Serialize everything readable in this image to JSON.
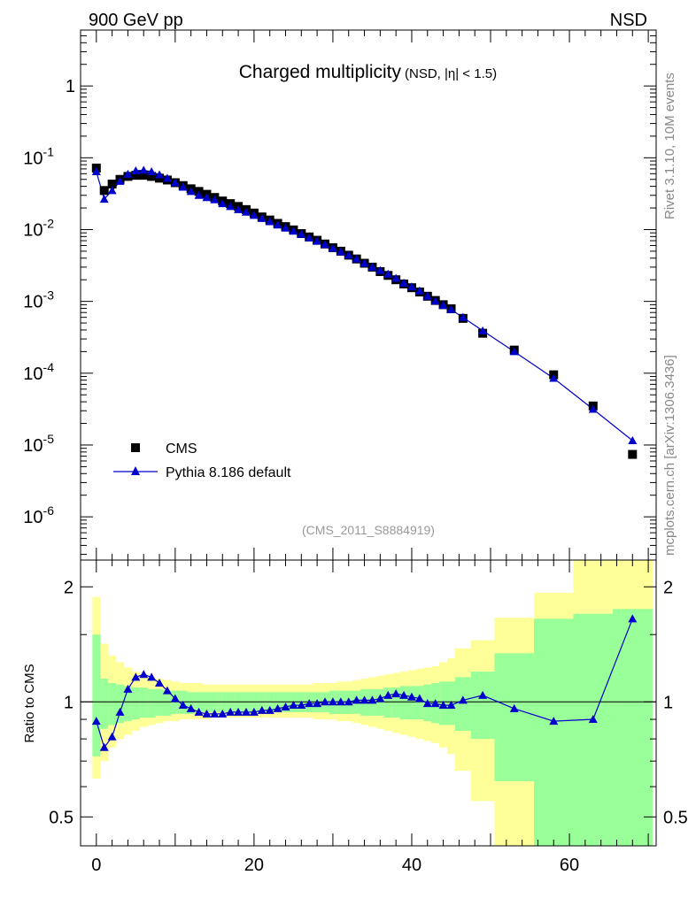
{
  "header": {
    "left": "900 GeV pp",
    "right": "NSD"
  },
  "title": {
    "main": "Charged multiplicity",
    "sub": "(NSD, |η| < 1.5)"
  },
  "side_labels": {
    "rivet": "Rivet 3.1.10,  10M events",
    "mcplots": "mcplots.cern.ch [arXiv:1306.3436]"
  },
  "analysis_id": "(CMS_2011_S8884919)",
  "legend": {
    "data_label": "CMS",
    "mc_label": "Pythia 8.186 default"
  },
  "ratio_ylabel": "Ratio to CMS",
  "colors": {
    "mc": "#0000cc",
    "data": "#000000",
    "band_inner": "#99ff99",
    "band_outer": "#ffff99"
  },
  "chart_data": [
    {
      "type": "scatter",
      "title": "Charged multiplicity",
      "yscale": "log",
      "xlim": [
        -2,
        71
      ],
      "ylim": [
        2.5e-07,
        6
      ],
      "ytick_labels": [
        "1",
        "10^-1",
        "10^-2",
        "10^-3",
        "10^-4",
        "10^-5",
        "10^-6"
      ],
      "x": [
        0,
        1,
        2,
        3,
        4,
        5,
        6,
        7,
        8,
        9,
        10,
        11,
        12,
        13,
        14,
        15,
        16,
        17,
        18,
        19,
        20,
        21,
        22,
        23,
        24,
        25,
        26,
        27,
        28,
        29,
        30,
        31,
        32,
        33,
        34,
        35,
        36,
        37,
        38,
        39,
        40,
        41,
        42,
        43,
        44,
        45,
        46.5,
        49,
        53,
        58,
        63,
        68
      ],
      "series": [
        {
          "name": "CMS",
          "marker": "square",
          "values": [
            0.072,
            0.035,
            0.043,
            0.05,
            0.055,
            0.057,
            0.057,
            0.055,
            0.052,
            0.049,
            0.045,
            0.041,
            0.037,
            0.034,
            0.031,
            0.028,
            0.025,
            0.023,
            0.021,
            0.019,
            0.017,
            0.015,
            0.0136,
            0.0122,
            0.011,
            0.0099,
            0.0088,
            0.0079,
            0.0071,
            0.0063,
            0.0056,
            0.005,
            0.0044,
            0.0039,
            0.0034,
            0.003,
            0.0026,
            0.0023,
            0.002,
            0.00175,
            0.00155,
            0.00135,
            0.00118,
            0.00103,
            0.0009,
            0.00079,
            0.00058,
            0.00036,
            0.00021,
            9.5e-05,
            3.5e-05,
            7.4e-06
          ]
        },
        {
          "name": "Pythia 8.186 default",
          "marker": "triangle",
          "values": [
            0.064,
            0.0265,
            0.035,
            0.047,
            0.059,
            0.066,
            0.067,
            0.064,
            0.058,
            0.052,
            0.045,
            0.039,
            0.034,
            0.03,
            0.028,
            0.026,
            0.023,
            0.021,
            0.019,
            0.0175,
            0.0158,
            0.0143,
            0.0129,
            0.0116,
            0.0105,
            0.0095,
            0.0086,
            0.0077,
            0.0069,
            0.0062,
            0.0055,
            0.0049,
            0.0044,
            0.0039,
            0.0034,
            0.003,
            0.0027,
            0.0024,
            0.0021,
            0.0018,
            0.0016,
            0.0014,
            0.00118,
            0.00101,
            0.00088,
            0.00077,
            0.0006,
            0.00039,
            0.0002,
            8.5e-05,
            3.15e-05,
            1.15e-05
          ]
        }
      ]
    },
    {
      "type": "line",
      "ylabel": "Ratio to CMS",
      "yscale": "log",
      "xlim": [
        -2,
        71
      ],
      "ylim": [
        0.42,
        2.35
      ],
      "yticks": [
        0.5,
        1,
        2
      ],
      "xticks": [
        0,
        20,
        40,
        60
      ],
      "x": [
        0,
        1,
        2,
        3,
        4,
        5,
        6,
        7,
        8,
        9,
        10,
        11,
        12,
        13,
        14,
        15,
        16,
        17,
        18,
        19,
        20,
        21,
        22,
        23,
        24,
        25,
        26,
        27,
        28,
        29,
        30,
        31,
        32,
        33,
        34,
        35,
        36,
        37,
        38,
        39,
        40,
        41,
        42,
        43,
        44,
        45,
        46.5,
        49,
        53,
        58,
        63,
        68
      ],
      "series": [
        {
          "name": "Pythia 8.186 default",
          "values": [
            0.89,
            0.76,
            0.81,
            0.94,
            1.08,
            1.16,
            1.18,
            1.16,
            1.12,
            1.07,
            1.02,
            0.98,
            0.96,
            0.94,
            0.93,
            0.93,
            0.93,
            0.94,
            0.94,
            0.94,
            0.94,
            0.95,
            0.95,
            0.96,
            0.97,
            0.98,
            0.98,
            0.99,
            0.99,
            1.0,
            1.0,
            1.0,
            1.0,
            1.01,
            1.01,
            1.01,
            1.02,
            1.04,
            1.05,
            1.04,
            1.03,
            1.02,
            0.99,
            0.99,
            0.98,
            0.98,
            1.01,
            1.04,
            0.96,
            0.89,
            0.9,
            1.65
          ]
        }
      ],
      "band_edges": [
        -0.5,
        0.5,
        1.5,
        2.5,
        3.5,
        4.5,
        5.5,
        6.5,
        7.5,
        8.5,
        9.5,
        10.5,
        11.5,
        12.5,
        13.5,
        14.5,
        15.5,
        16.5,
        17.5,
        18.5,
        19.5,
        20.5,
        21.5,
        22.5,
        23.5,
        24.5,
        25.5,
        26.5,
        27.5,
        28.5,
        29.5,
        30.5,
        31.5,
        32.5,
        33.5,
        34.5,
        35.5,
        36.5,
        37.5,
        38.5,
        39.5,
        40.5,
        41.5,
        42.5,
        43.5,
        44.5,
        45.5,
        47.5,
        50.5,
        55.5,
        60.5,
        65.5,
        70.5
      ],
      "band_inner": {
        "lower": [
          0.72,
          0.85,
          0.87,
          0.88,
          0.89,
          0.9,
          0.91,
          0.91,
          0.92,
          0.92,
          0.93,
          0.93,
          0.93,
          0.94,
          0.94,
          0.94,
          0.94,
          0.94,
          0.94,
          0.94,
          0.94,
          0.94,
          0.94,
          0.94,
          0.94,
          0.94,
          0.94,
          0.94,
          0.94,
          0.94,
          0.93,
          0.93,
          0.93,
          0.93,
          0.92,
          0.92,
          0.92,
          0.91,
          0.91,
          0.9,
          0.9,
          0.9,
          0.89,
          0.88,
          0.87,
          0.87,
          0.84,
          0.8,
          0.62,
          0.42,
          0.38,
          0.42
        ],
        "upper": [
          1.5,
          1.15,
          1.12,
          1.11,
          1.1,
          1.09,
          1.09,
          1.08,
          1.08,
          1.07,
          1.07,
          1.07,
          1.06,
          1.06,
          1.06,
          1.06,
          1.06,
          1.06,
          1.06,
          1.06,
          1.06,
          1.06,
          1.06,
          1.06,
          1.06,
          1.06,
          1.06,
          1.06,
          1.06,
          1.06,
          1.07,
          1.07,
          1.07,
          1.07,
          1.08,
          1.08,
          1.08,
          1.09,
          1.09,
          1.1,
          1.1,
          1.1,
          1.11,
          1.12,
          1.13,
          1.13,
          1.16,
          1.2,
          1.34,
          1.65,
          1.7,
          1.75
        ]
      },
      "band_outer": {
        "lower": [
          0.63,
          0.7,
          0.76,
          0.8,
          0.82,
          0.84,
          0.86,
          0.87,
          0.88,
          0.89,
          0.89,
          0.9,
          0.9,
          0.9,
          0.9,
          0.91,
          0.91,
          0.91,
          0.91,
          0.91,
          0.91,
          0.91,
          0.91,
          0.91,
          0.91,
          0.91,
          0.91,
          0.91,
          0.9,
          0.9,
          0.9,
          0.89,
          0.89,
          0.88,
          0.87,
          0.86,
          0.85,
          0.84,
          0.83,
          0.82,
          0.81,
          0.8,
          0.79,
          0.78,
          0.76,
          0.73,
          0.66,
          0.55,
          0.42,
          0.38,
          0.38,
          0.38
        ],
        "upper": [
          1.88,
          1.42,
          1.32,
          1.27,
          1.23,
          1.2,
          1.18,
          1.16,
          1.15,
          1.14,
          1.13,
          1.12,
          1.12,
          1.12,
          1.11,
          1.11,
          1.11,
          1.11,
          1.11,
          1.11,
          1.11,
          1.11,
          1.11,
          1.11,
          1.11,
          1.11,
          1.11,
          1.11,
          1.12,
          1.12,
          1.12,
          1.13,
          1.13,
          1.14,
          1.15,
          1.16,
          1.17,
          1.18,
          1.19,
          1.2,
          1.21,
          1.22,
          1.23,
          1.24,
          1.27,
          1.3,
          1.38,
          1.45,
          1.66,
          1.93,
          2.35,
          2.35
        ]
      }
    }
  ]
}
